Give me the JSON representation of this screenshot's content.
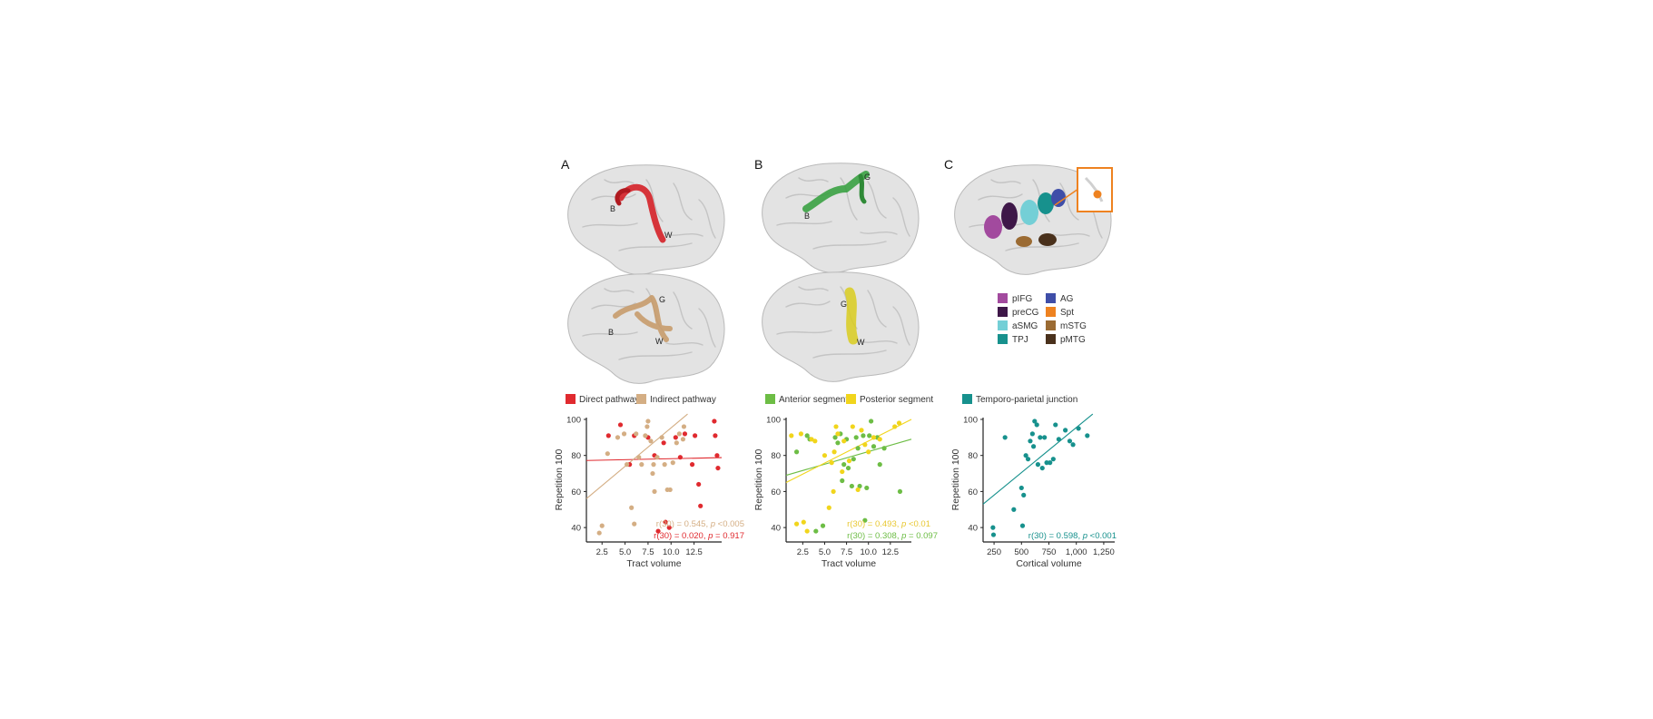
{
  "panels": {
    "A": {
      "label": "A",
      "legend": [
        {
          "label": "Direct pathway",
          "color": "#e02a2f"
        },
        {
          "label": "Indirect pathway",
          "color": "#d4ae84"
        }
      ],
      "brain_top_letters": [
        "B",
        "W"
      ],
      "brain_bottom_letters": [
        "B",
        "G",
        "W"
      ],
      "stats": [
        {
          "prefix": "r(30) = 0.545, ",
          "p": "p",
          "suffix": " <0.005",
          "color": "#d4ae84"
        },
        {
          "prefix": "r(30) = 0.020, ",
          "p": "p",
          "suffix": " = 0.917",
          "color": "#e02a2f"
        }
      ]
    },
    "B": {
      "label": "B",
      "legend": [
        {
          "label": "Anterior segment",
          "color": "#6dbd45"
        },
        {
          "label": "Posterior segment",
          "color": "#f1d51c"
        }
      ],
      "brain_top_letters": [
        "B",
        "G"
      ],
      "brain_bottom_letters": [
        "G",
        "W"
      ],
      "stats": [
        {
          "prefix": "r(30) = 0.493, ",
          "p": "p",
          "suffix": " <0.01",
          "color": "#e8c832"
        },
        {
          "prefix": "r(30) = 0.308, ",
          "p": "p",
          "suffix": " = 0.097",
          "color": "#6dbd45"
        }
      ]
    },
    "C": {
      "label": "C",
      "legend": [
        {
          "label": "Temporo-parietal junction",
          "color": "#17918d"
        }
      ],
      "roi_legend": [
        {
          "label": "pIFG",
          "color": "#a24a9e"
        },
        {
          "label": "preCG",
          "color": "#3e1748"
        },
        {
          "label": "aSMG",
          "color": "#74cfd6"
        },
        {
          "label": "TPJ",
          "color": "#17918d"
        },
        {
          "label": "AG",
          "color": "#3f4ea8"
        },
        {
          "label": "Spt",
          "color": "#ee8220"
        },
        {
          "label": "mSTG",
          "color": "#9b6b33"
        },
        {
          "label": "pMTG",
          "color": "#4a311c"
        }
      ],
      "stats": [
        {
          "prefix": "r(30) = 0.598, ",
          "p": "p",
          "suffix": " <0.001",
          "color": "#17918d"
        }
      ]
    }
  },
  "chart_data": [
    {
      "type": "scatter",
      "panel": "A",
      "xlabel": "Tract volume",
      "ylabel": "Repetition 100",
      "xlim": [
        0.8,
        15.5
      ],
      "ylim": [
        32,
        101
      ],
      "xticks": [
        "2.5",
        "5.0",
        "7.5",
        "10.0",
        "12.5"
      ],
      "xtick_values": [
        2.5,
        5.0,
        7.5,
        10.0,
        12.5
      ],
      "yticks": [
        "40",
        "60",
        "80",
        "100"
      ],
      "ytick_values": [
        40,
        60,
        80,
        100
      ],
      "series": [
        {
          "name": "Direct pathway",
          "color": "#e02a2f",
          "points": [
            [
              3.2,
              91
            ],
            [
              4.5,
              97
            ],
            [
              5.5,
              75
            ],
            [
              6.0,
              91
            ],
            [
              7.5,
              90
            ],
            [
              8.2,
              80
            ],
            [
              8.6,
              38
            ],
            [
              9.2,
              87
            ],
            [
              9.4,
              43
            ],
            [
              9.8,
              40
            ],
            [
              10.5,
              90
            ],
            [
              11.0,
              79
            ],
            [
              11.5,
              92
            ],
            [
              12.3,
              75
            ],
            [
              12.6,
              91
            ],
            [
              13.0,
              64
            ],
            [
              13.2,
              52
            ],
            [
              14.7,
              99
            ],
            [
              14.8,
              91
            ],
            [
              15.0,
              80
            ],
            [
              15.1,
              73
            ]
          ],
          "fit": [
            [
              0.8,
              77.2
            ],
            [
              15.5,
              78.8
            ]
          ]
        },
        {
          "name": "Indirect pathway",
          "color": "#d4ae84",
          "points": [
            [
              2.2,
              37
            ],
            [
              2.5,
              41
            ],
            [
              3.1,
              81
            ],
            [
              4.2,
              90
            ],
            [
              4.9,
              92
            ],
            [
              5.2,
              75
            ],
            [
              5.7,
              51
            ],
            [
              6.0,
              42
            ],
            [
              6.2,
              92
            ],
            [
              6.5,
              79
            ],
            [
              6.8,
              75
            ],
            [
              7.2,
              91
            ],
            [
              7.4,
              96
            ],
            [
              7.5,
              99
            ],
            [
              7.8,
              88
            ],
            [
              8.0,
              70
            ],
            [
              8.1,
              75
            ],
            [
              8.2,
              60
            ],
            [
              8.5,
              79
            ],
            [
              9.0,
              90
            ],
            [
              9.3,
              75
            ],
            [
              9.6,
              61
            ],
            [
              9.9,
              61
            ],
            [
              10.2,
              76
            ],
            [
              10.6,
              87
            ],
            [
              10.9,
              92
            ],
            [
              11.3,
              89
            ],
            [
              11.4,
              96
            ]
          ],
          "fit": [
            [
              0.8,
              56
            ],
            [
              11.8,
              103
            ]
          ]
        }
      ]
    },
    {
      "type": "scatter",
      "panel": "B",
      "xlabel": "Tract volume",
      "ylabel": "Repetition 100",
      "xlim": [
        0.6,
        14.9
      ],
      "ylim": [
        32,
        101
      ],
      "xticks": [
        "2.5",
        "5.0",
        "7.5",
        "10.0",
        "12.5"
      ],
      "xtick_values": [
        2.5,
        5.0,
        7.5,
        10.0,
        12.5
      ],
      "yticks": [
        "40",
        "60",
        "80",
        "100"
      ],
      "ytick_values": [
        40,
        60,
        80,
        100
      ],
      "series": [
        {
          "name": "Anterior segment",
          "color": "#6dbd45",
          "points": [
            [
              1.8,
              82
            ],
            [
              3.0,
              91
            ],
            [
              3.3,
              89
            ],
            [
              4.0,
              38
            ],
            [
              4.8,
              41
            ],
            [
              6.2,
              90
            ],
            [
              6.5,
              87
            ],
            [
              6.8,
              92
            ],
            [
              7.0,
              66
            ],
            [
              7.2,
              75
            ],
            [
              7.5,
              89
            ],
            [
              7.7,
              73
            ],
            [
              8.1,
              63
            ],
            [
              8.3,
              78
            ],
            [
              8.6,
              90
            ],
            [
              8.8,
              84
            ],
            [
              9.0,
              63
            ],
            [
              9.4,
              91
            ],
            [
              9.6,
              44
            ],
            [
              9.8,
              62
            ],
            [
              10.1,
              91
            ],
            [
              10.3,
              99
            ],
            [
              10.6,
              85
            ],
            [
              11.0,
              90
            ],
            [
              11.3,
              75
            ],
            [
              11.8,
              84
            ],
            [
              13.6,
              60
            ]
          ],
          "fit": [
            [
              0.6,
              69
            ],
            [
              14.9,
              89
            ]
          ]
        },
        {
          "name": "Posterior segment",
          "color": "#f1d51c",
          "points": [
            [
              1.2,
              91
            ],
            [
              1.8,
              42
            ],
            [
              2.3,
              92
            ],
            [
              2.6,
              43
            ],
            [
              3.0,
              38
            ],
            [
              3.5,
              89
            ],
            [
              3.9,
              88
            ],
            [
              5.0,
              80
            ],
            [
              5.5,
              51
            ],
            [
              5.8,
              76
            ],
            [
              6.0,
              60
            ],
            [
              6.1,
              82
            ],
            [
              6.3,
              96
            ],
            [
              6.5,
              92
            ],
            [
              7.0,
              71
            ],
            [
              7.2,
              88
            ],
            [
              7.8,
              77
            ],
            [
              8.2,
              96
            ],
            [
              8.8,
              61
            ],
            [
              9.2,
              94
            ],
            [
              9.6,
              86
            ],
            [
              10.0,
              82
            ],
            [
              10.6,
              90
            ],
            [
              11.3,
              89
            ],
            [
              13.0,
              96
            ],
            [
              13.5,
              98
            ]
          ],
          "fit": [
            [
              0.6,
              65
            ],
            [
              14.9,
              100
            ]
          ]
        }
      ]
    },
    {
      "type": "scatter",
      "panel": "C",
      "xlabel": "Cortical volume",
      "ylabel": "Repetition 100",
      "xlim": [
        150,
        1350
      ],
      "ylim": [
        32,
        101
      ],
      "xticks": [
        "250",
        "500",
        "750",
        "1,000",
        "1,250"
      ],
      "xtick_values": [
        250,
        500,
        750,
        1000,
        1250
      ],
      "yticks": [
        "40",
        "60",
        "80",
        "100"
      ],
      "ytick_values": [
        40,
        60,
        80,
        100
      ],
      "series": [
        {
          "name": "Temporo-parietal junction",
          "color": "#17918d",
          "points": [
            [
              240,
              40
            ],
            [
              245,
              36
            ],
            [
              350,
              90
            ],
            [
              430,
              50
            ],
            [
              500,
              62
            ],
            [
              510,
              41
            ],
            [
              520,
              58
            ],
            [
              540,
              80
            ],
            [
              560,
              78
            ],
            [
              580,
              88
            ],
            [
              600,
              92
            ],
            [
              610,
              85
            ],
            [
              620,
              99
            ],
            [
              640,
              97
            ],
            [
              650,
              75
            ],
            [
              670,
              90
            ],
            [
              690,
              73
            ],
            [
              710,
              90
            ],
            [
              730,
              76
            ],
            [
              760,
              76
            ],
            [
              790,
              78
            ],
            [
              810,
              97
            ],
            [
              840,
              89
            ],
            [
              900,
              94
            ],
            [
              940,
              88
            ],
            [
              970,
              86
            ],
            [
              1020,
              95
            ],
            [
              1100,
              91
            ]
          ],
          "fit": [
            [
              150,
              53
            ],
            [
              1150,
              103
            ]
          ]
        }
      ]
    }
  ]
}
